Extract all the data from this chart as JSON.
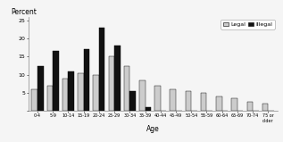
{
  "age_groups": [
    "0-4",
    "5-9",
    "10-14",
    "15-19",
    "20-24",
    "25-29",
    "30-34",
    "35-39",
    "40-44",
    "45-49",
    "50-54",
    "55-59",
    "60-64",
    "65-69",
    "70-74",
    "75 or\nolder"
  ],
  "legal": [
    6,
    7,
    9,
    10.5,
    10,
    15,
    12.5,
    8.5,
    7,
    6,
    5.5,
    5,
    4,
    3.5,
    2.5,
    2
  ],
  "illegal": [
    12.5,
    16.5,
    11,
    17,
    23,
    18,
    5.5,
    1,
    0,
    0,
    0,
    0,
    0,
    0,
    0,
    0
  ],
  "legal_color": "#cccccc",
  "illegal_color": "#111111",
  "title": "Percent",
  "xlabel": "Age",
  "ylim": [
    0,
    26
  ],
  "yticks": [
    0,
    5,
    10,
    15,
    20,
    25
  ],
  "legend_labels": [
    "Legal",
    "Illegal"
  ],
  "background_color": "#f5f5f5"
}
